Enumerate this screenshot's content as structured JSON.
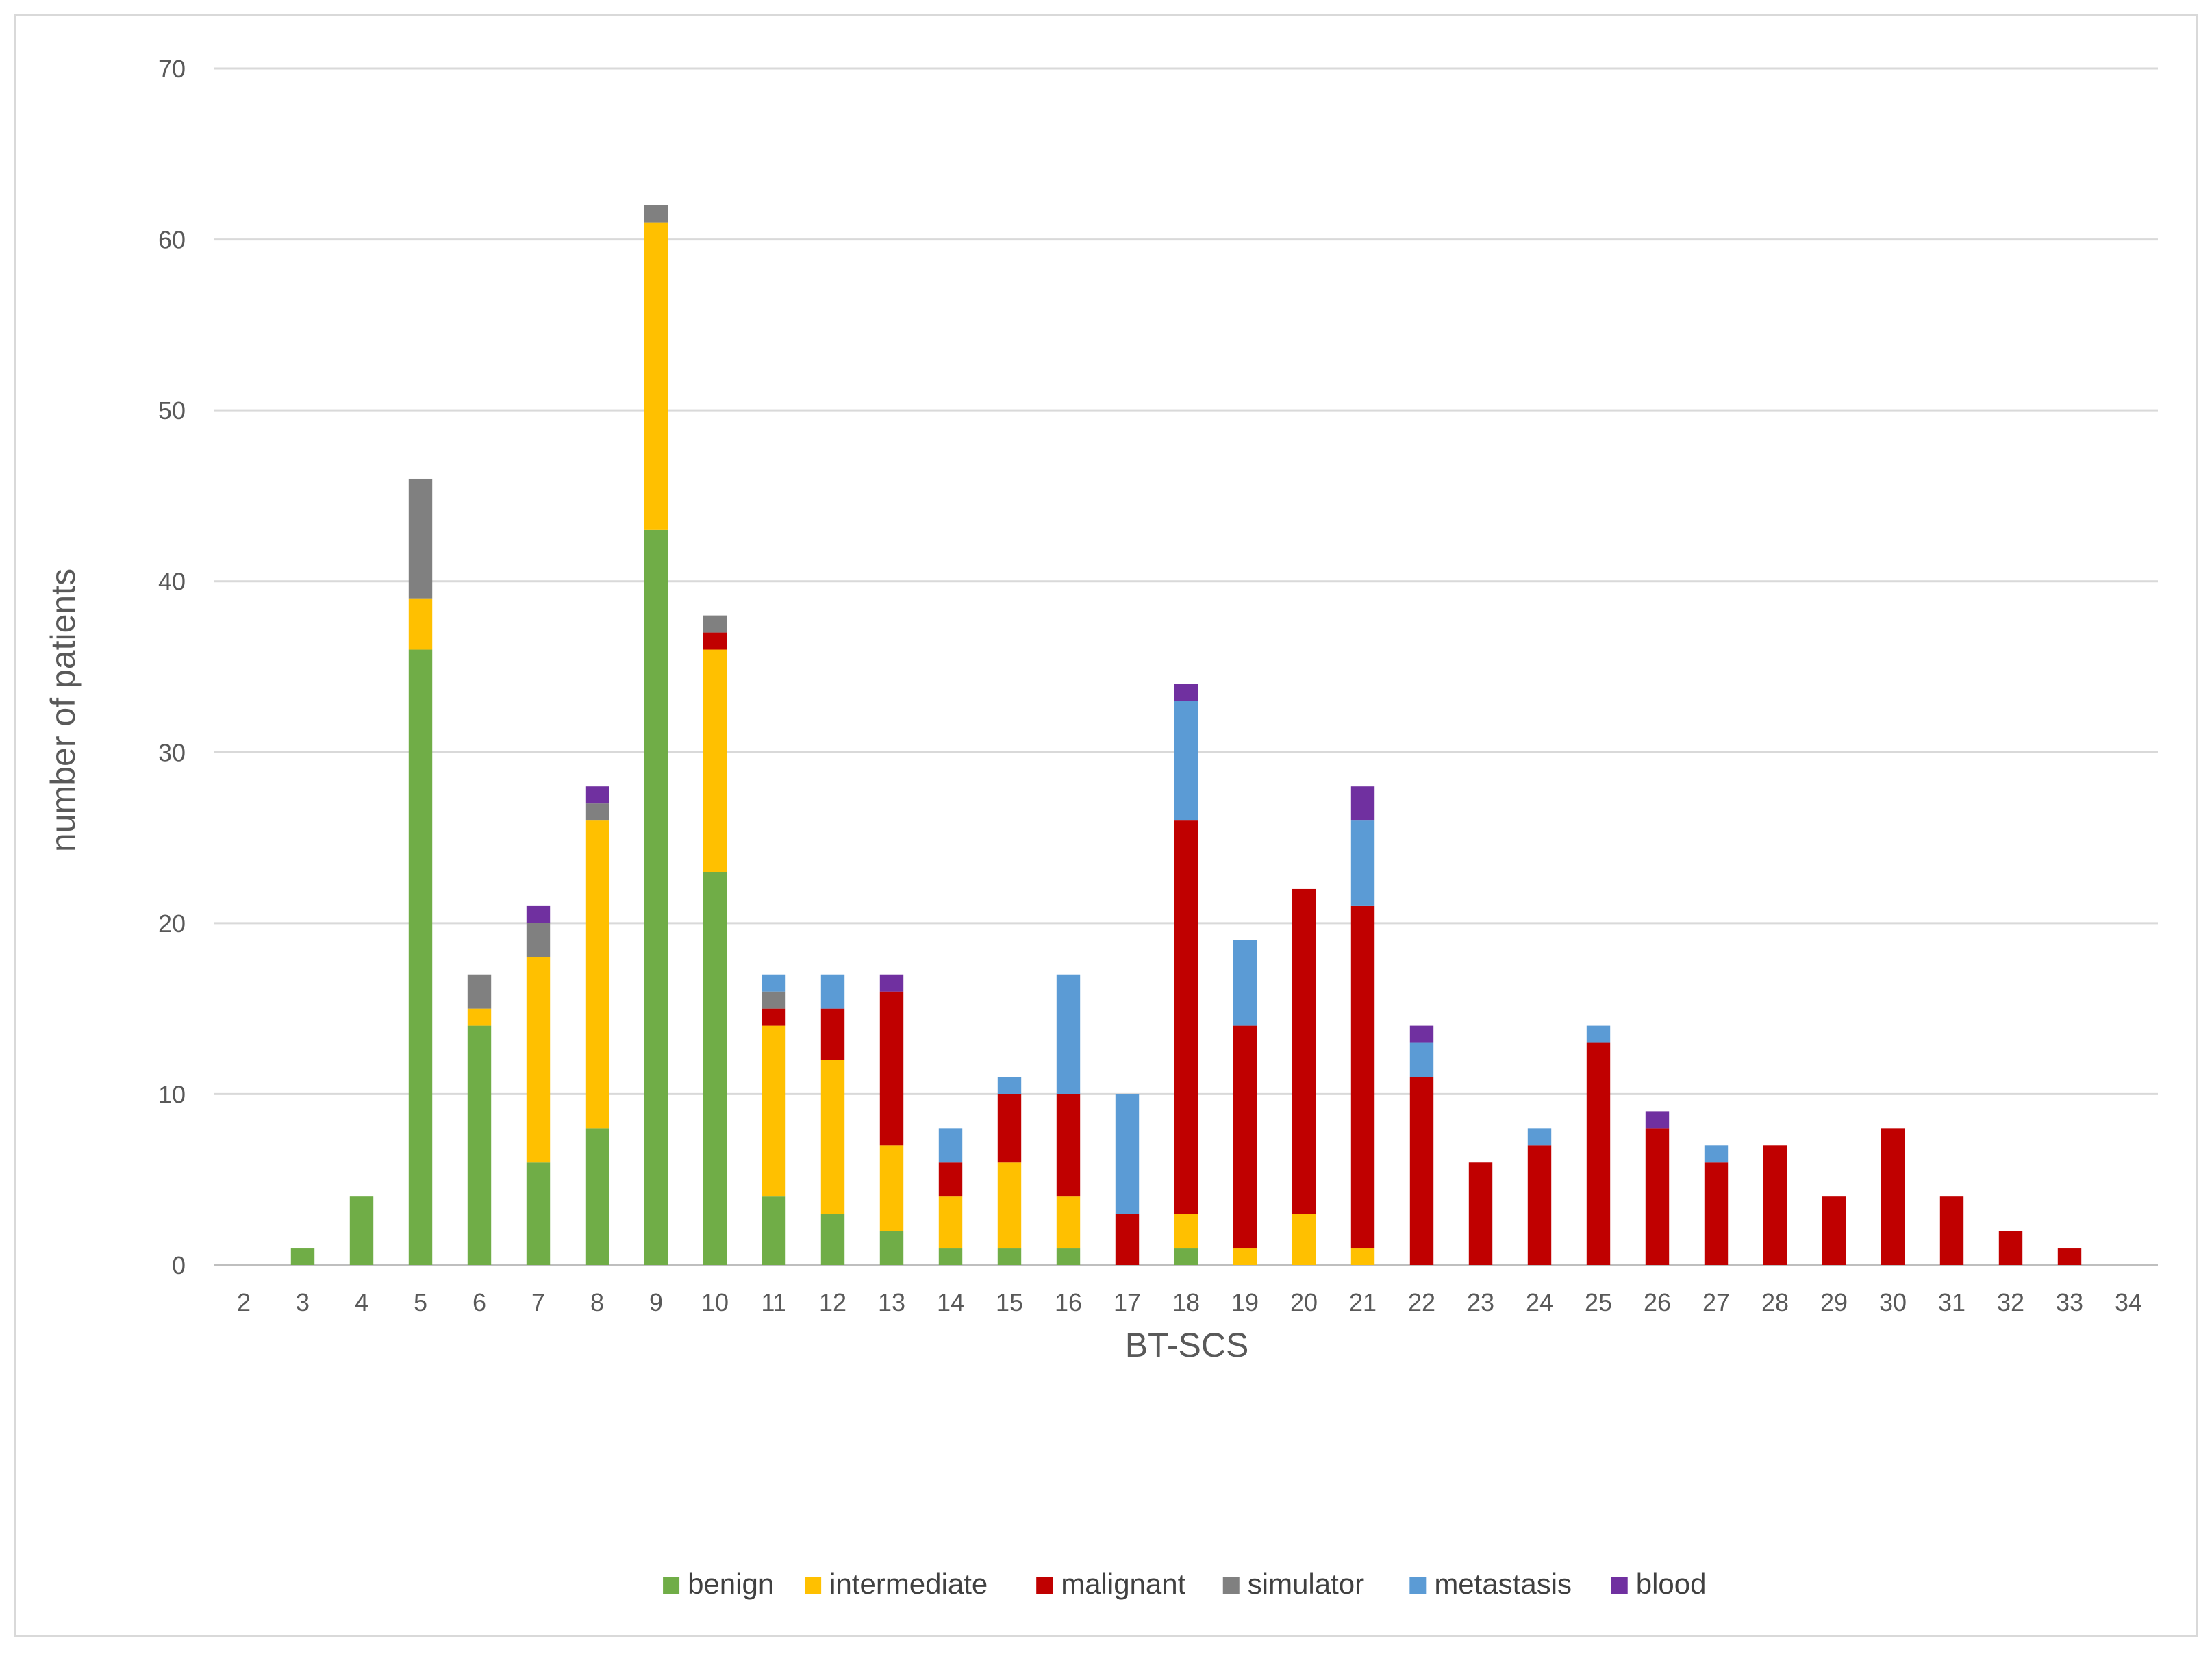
{
  "chart_data": {
    "type": "bar",
    "stacked": true,
    "xlabel": "BT-SCS",
    "ylabel": "number of patients",
    "ylim": [
      0,
      70
    ],
    "yticks": [
      0,
      10,
      20,
      30,
      40,
      50,
      60,
      70
    ],
    "grid": true,
    "legend_position": "bottom",
    "categories": [
      "2",
      "3",
      "4",
      "5",
      "6",
      "7",
      "8",
      "9",
      "10",
      "11",
      "12",
      "13",
      "14",
      "15",
      "16",
      "17",
      "18",
      "19",
      "20",
      "21",
      "22",
      "23",
      "24",
      "25",
      "26",
      "27",
      "28",
      "29",
      "30",
      "31",
      "32",
      "33",
      "34"
    ],
    "series": [
      {
        "name": "benign",
        "color": "#70ad47",
        "values": [
          0,
          1,
          4,
          36,
          14,
          6,
          8,
          43,
          23,
          4,
          3,
          2,
          1,
          1,
          1,
          0,
          1,
          0,
          0,
          0,
          0,
          0,
          0,
          0,
          0,
          0,
          0,
          0,
          0,
          0,
          0,
          0,
          0
        ]
      },
      {
        "name": "intermediate",
        "color": "#ffc000",
        "values": [
          0,
          0,
          0,
          3,
          1,
          12,
          18,
          18,
          13,
          10,
          9,
          5,
          3,
          5,
          3,
          0,
          2,
          1,
          3,
          1,
          0,
          0,
          0,
          0,
          0,
          0,
          0,
          0,
          0,
          0,
          0,
          0,
          0
        ]
      },
      {
        "name": "malignant",
        "color": "#c00000",
        "values": [
          0,
          0,
          0,
          0,
          0,
          0,
          0,
          0,
          1,
          1,
          3,
          9,
          2,
          4,
          6,
          3,
          23,
          13,
          19,
          20,
          11,
          6,
          7,
          13,
          8,
          6,
          7,
          4,
          8,
          4,
          2,
          1,
          0
        ]
      },
      {
        "name": "simulator",
        "color": "#808080",
        "values": [
          0,
          0,
          0,
          7,
          2,
          2,
          1,
          1,
          1,
          1,
          0,
          0,
          0,
          0,
          0,
          0,
          0,
          0,
          0,
          0,
          0,
          0,
          0,
          0,
          0,
          0,
          0,
          0,
          0,
          0,
          0,
          0,
          0
        ]
      },
      {
        "name": "metastasis",
        "color": "#5b9bd5",
        "values": [
          0,
          0,
          0,
          0,
          0,
          0,
          0,
          0,
          0,
          1,
          2,
          0,
          2,
          1,
          7,
          7,
          7,
          5,
          0,
          5,
          2,
          0,
          1,
          1,
          0,
          1,
          0,
          0,
          0,
          0,
          0,
          0,
          0
        ]
      },
      {
        "name": "blood",
        "color": "#7030a0",
        "values": [
          0,
          0,
          0,
          0,
          0,
          1,
          1,
          0,
          0,
          0,
          0,
          1,
          0,
          0,
          0,
          0,
          1,
          0,
          0,
          2,
          1,
          0,
          0,
          0,
          1,
          0,
          0,
          0,
          0,
          0,
          0,
          0,
          0
        ]
      }
    ]
  }
}
